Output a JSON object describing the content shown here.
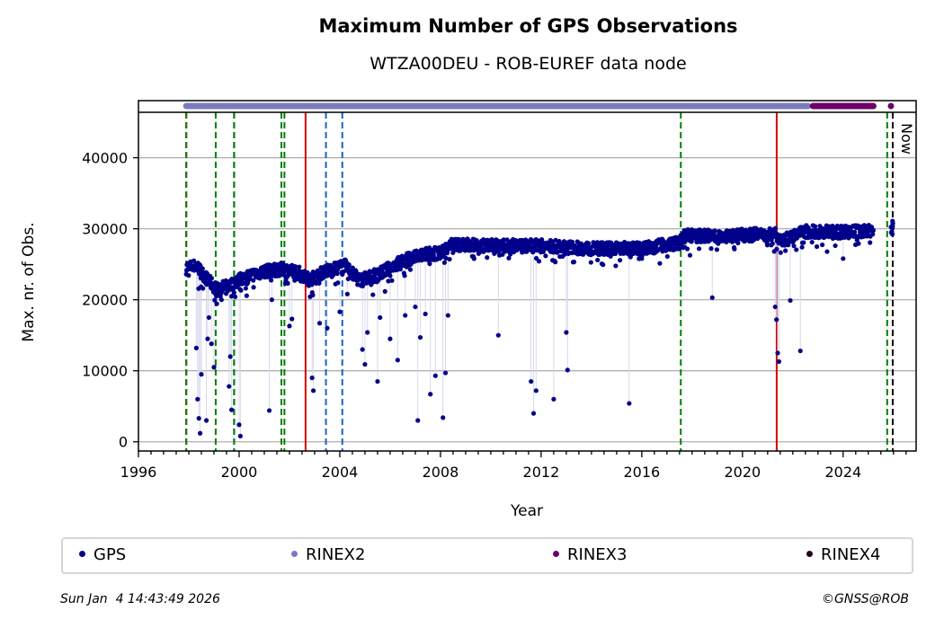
{
  "chart_data": {
    "type": "scatter",
    "title": "Maximum Number of GPS Observations",
    "subtitle": "WTZA00DEU - ROB-EUREF data node",
    "xlabel": "Year",
    "ylabel": "Max. nr. of Obs.",
    "xlim": [
      1996,
      2026.9
    ],
    "ylim": [
      -1300,
      46400
    ],
    "xticks": [
      1996,
      2000,
      2004,
      2008,
      2012,
      2016,
      2020,
      2024
    ],
    "xtick_labels": [
      "1996",
      "2000",
      "2004",
      "2008",
      "2012",
      "2016",
      "2020",
      "2024"
    ],
    "yticks": [
      0,
      10000,
      20000,
      30000,
      40000
    ],
    "ytick_labels": [
      "0",
      "10000",
      "20000",
      "30000",
      "40000"
    ],
    "grid": true,
    "legend_position": "bottom",
    "legend": [
      "GPS",
      "RINEX2",
      "RINEX3",
      "RINEX4"
    ],
    "colors": {
      "GPS": "#00008b",
      "RINEX2": "#7b7bbb",
      "RINEX3": "#6a0068",
      "RINEX4": "#2a0020",
      "red_line": "#d40000",
      "green_line": "#008000",
      "blue_line": "#1565c0",
      "now_line": "#000000",
      "grid": "#b0b0b0"
    },
    "gps_trend": [
      {
        "x": 1997.9,
        "y": 24500
      },
      {
        "x": 1998.3,
        "y": 24800
      },
      {
        "x": 1998.7,
        "y": 23000
      },
      {
        "x": 1999.1,
        "y": 21500
      },
      {
        "x": 1999.6,
        "y": 22000
      },
      {
        "x": 2000.0,
        "y": 22800
      },
      {
        "x": 2000.5,
        "y": 23500
      },
      {
        "x": 2001.0,
        "y": 24000
      },
      {
        "x": 2001.7,
        "y": 24300
      },
      {
        "x": 2002.3,
        "y": 24000
      },
      {
        "x": 2002.8,
        "y": 22800
      },
      {
        "x": 2003.4,
        "y": 24000
      },
      {
        "x": 2004.2,
        "y": 24800
      },
      {
        "x": 2004.8,
        "y": 22800
      },
      {
        "x": 2005.5,
        "y": 23500
      },
      {
        "x": 2006.5,
        "y": 25500
      },
      {
        "x": 2007.5,
        "y": 26500
      },
      {
        "x": 2008.0,
        "y": 26500
      },
      {
        "x": 2008.4,
        "y": 27800
      },
      {
        "x": 2010.0,
        "y": 27600
      },
      {
        "x": 2012.0,
        "y": 27600
      },
      {
        "x": 2014.0,
        "y": 27200
      },
      {
        "x": 2016.0,
        "y": 27300
      },
      {
        "x": 2017.5,
        "y": 28000
      },
      {
        "x": 2017.7,
        "y": 29000
      },
      {
        "x": 2019.5,
        "y": 29000
      },
      {
        "x": 2021.3,
        "y": 29300
      },
      {
        "x": 2021.6,
        "y": 28400
      },
      {
        "x": 2022.5,
        "y": 29600
      },
      {
        "x": 2024.0,
        "y": 29500
      },
      {
        "x": 2025.6,
        "y": 29800
      }
    ],
    "gps_outliers": [
      {
        "x": 1998.3,
        "y": 13200
      },
      {
        "x": 1998.35,
        "y": 6000
      },
      {
        "x": 1998.4,
        "y": 3300
      },
      {
        "x": 1998.45,
        "y": 1200
      },
      {
        "x": 1998.5,
        "y": 9500
      },
      {
        "x": 1998.7,
        "y": 3000
      },
      {
        "x": 1998.75,
        "y": 14500
      },
      {
        "x": 1998.8,
        "y": 17500
      },
      {
        "x": 1998.9,
        "y": 13800
      },
      {
        "x": 1999.0,
        "y": 10500
      },
      {
        "x": 1999.1,
        "y": 20500
      },
      {
        "x": 1999.3,
        "y": 20000
      },
      {
        "x": 1999.6,
        "y": 7800
      },
      {
        "x": 1999.65,
        "y": 12000
      },
      {
        "x": 1999.7,
        "y": 4500
      },
      {
        "x": 1999.8,
        "y": 21000
      },
      {
        "x": 2000.0,
        "y": 2400
      },
      {
        "x": 2000.05,
        "y": 800
      },
      {
        "x": 2001.2,
        "y": 4400
      },
      {
        "x": 2001.3,
        "y": 20000
      },
      {
        "x": 2002.0,
        "y": 16300
      },
      {
        "x": 2002.1,
        "y": 17300
      },
      {
        "x": 2002.9,
        "y": 9000
      },
      {
        "x": 2002.95,
        "y": 7200
      },
      {
        "x": 2003.2,
        "y": 16700
      },
      {
        "x": 2003.5,
        "y": 16000
      },
      {
        "x": 2004.0,
        "y": 18300
      },
      {
        "x": 2004.3,
        "y": 20800
      },
      {
        "x": 2004.9,
        "y": 13000
      },
      {
        "x": 2005.0,
        "y": 10900
      },
      {
        "x": 2005.1,
        "y": 15400
      },
      {
        "x": 2005.5,
        "y": 8500
      },
      {
        "x": 2005.6,
        "y": 17500
      },
      {
        "x": 2006.0,
        "y": 14500
      },
      {
        "x": 2006.3,
        "y": 11500
      },
      {
        "x": 2006.6,
        "y": 17800
      },
      {
        "x": 2007.0,
        "y": 19000
      },
      {
        "x": 2007.1,
        "y": 3000
      },
      {
        "x": 2007.2,
        "y": 14700
      },
      {
        "x": 2007.4,
        "y": 18000
      },
      {
        "x": 2007.6,
        "y": 6700
      },
      {
        "x": 2007.8,
        "y": 9300
      },
      {
        "x": 2008.1,
        "y": 3400
      },
      {
        "x": 2008.2,
        "y": 9700
      },
      {
        "x": 2008.3,
        "y": 17800
      },
      {
        "x": 2010.3,
        "y": 15000
      },
      {
        "x": 2011.6,
        "y": 8500
      },
      {
        "x": 2011.7,
        "y": 4000
      },
      {
        "x": 2011.8,
        "y": 7200
      },
      {
        "x": 2012.5,
        "y": 6000
      },
      {
        "x": 2013.0,
        "y": 15400
      },
      {
        "x": 2013.05,
        "y": 10100
      },
      {
        "x": 2015.5,
        "y": 5400
      },
      {
        "x": 2016.0,
        "y": 25800
      },
      {
        "x": 2018.8,
        "y": 20300
      },
      {
        "x": 2021.3,
        "y": 19000
      },
      {
        "x": 2021.35,
        "y": 17200
      },
      {
        "x": 2021.4,
        "y": 12500
      },
      {
        "x": 2021.45,
        "y": 11300
      },
      {
        "x": 2021.9,
        "y": 19900
      },
      {
        "x": 2022.3,
        "y": 12800
      },
      {
        "x": 2024.0,
        "y": 25800
      }
    ],
    "rinex_band": [
      {
        "format": "RINEX2",
        "start": 1997.9,
        "end": 2022.6
      },
      {
        "format": "RINEX3",
        "start": 2022.8,
        "end": 2025.2
      },
      {
        "format": "RINEX3",
        "start": 2025.9,
        "end": 2025.9
      }
    ],
    "event_lines": [
      {
        "x": 1997.9,
        "color": "red_line",
        "style": "dashed"
      },
      {
        "x": 1997.9,
        "color": "green_line",
        "style": "dashed"
      },
      {
        "x": 1999.07,
        "color": "green_line",
        "style": "dashed"
      },
      {
        "x": 1999.8,
        "color": "blue_line",
        "style": "dashed"
      },
      {
        "x": 1999.8,
        "color": "green_line",
        "style": "dashed"
      },
      {
        "x": 2001.68,
        "color": "green_line",
        "style": "dashed"
      },
      {
        "x": 2001.8,
        "color": "green_line",
        "style": "dashed"
      },
      {
        "x": 2002.64,
        "color": "red_line",
        "style": "solid"
      },
      {
        "x": 2003.45,
        "color": "blue_line",
        "style": "dashed"
      },
      {
        "x": 2004.1,
        "color": "blue_line",
        "style": "dashed"
      },
      {
        "x": 2017.55,
        "color": "green_line",
        "style": "dashed"
      },
      {
        "x": 2021.36,
        "color": "red_line",
        "style": "solid"
      },
      {
        "x": 2025.75,
        "color": "green_line",
        "style": "dashed"
      },
      {
        "x": 2025.97,
        "color": "now_line",
        "style": "dashed"
      }
    ],
    "now_label": "Now"
  },
  "footer": {
    "timestamp": "Sun Jan  4 14:43:49 2026",
    "copyright": "©GNSS@ROB"
  }
}
